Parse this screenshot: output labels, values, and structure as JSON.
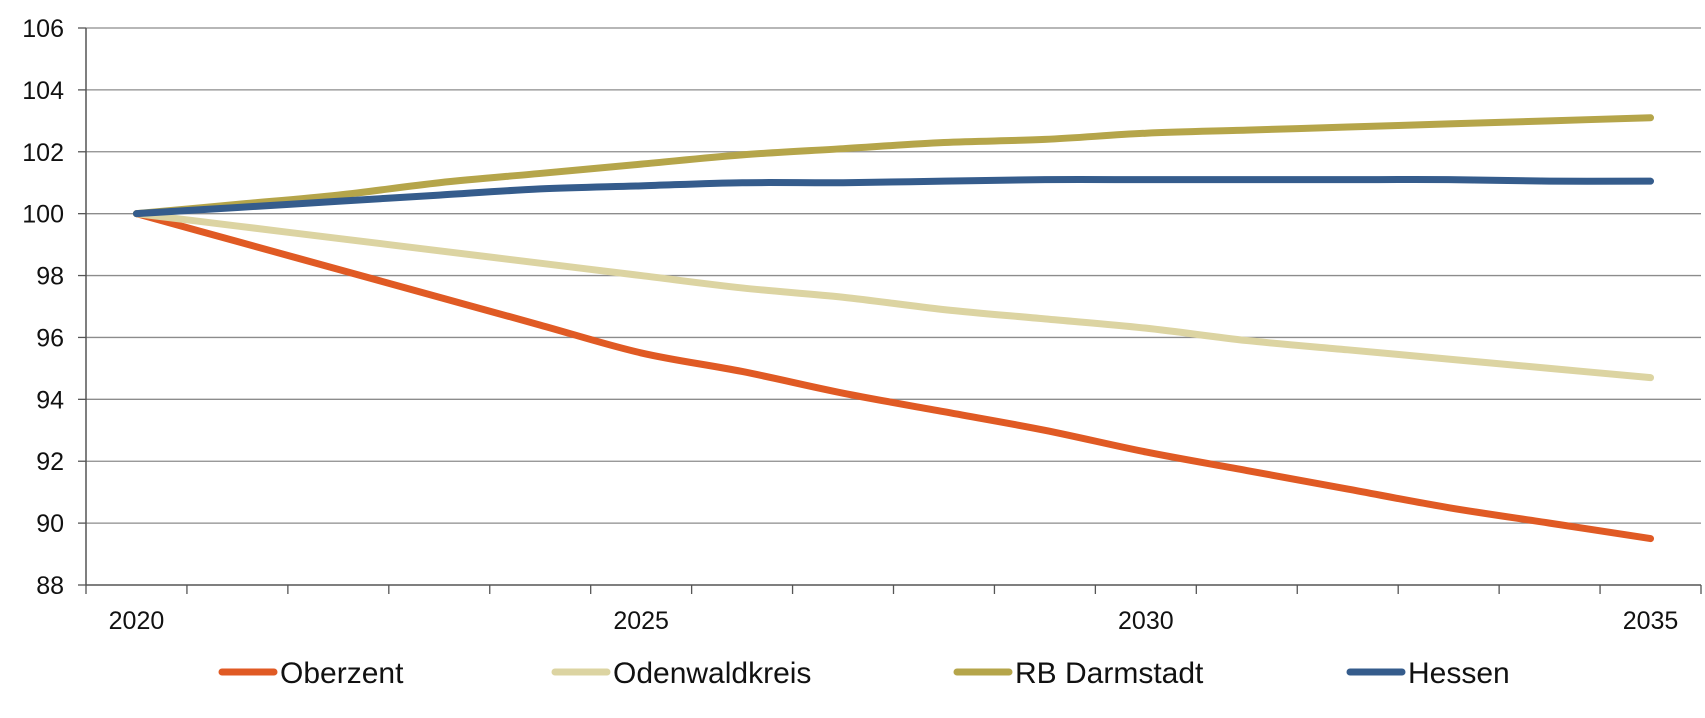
{
  "chart_data": {
    "type": "line",
    "title": "",
    "xlabel": "",
    "ylabel": "",
    "x": [
      2020,
      2021,
      2022,
      2023,
      2024,
      2025,
      2026,
      2027,
      2028,
      2029,
      2030,
      2031,
      2032,
      2033,
      2034,
      2035
    ],
    "xlim": [
      2019.5,
      2035.5
    ],
    "x_tick_labels": [
      "2020",
      "2025",
      "2030",
      "2035"
    ],
    "x_tick_label_values": [
      2020,
      2025,
      2030,
      2035
    ],
    "ylim": [
      88,
      106
    ],
    "y_ticks": [
      88,
      90,
      92,
      94,
      96,
      98,
      100,
      102,
      104,
      106
    ],
    "grid": "horizontal",
    "legend_position": "bottom",
    "series": [
      {
        "name": "Oberzent",
        "color": "#E05A24",
        "values": [
          100,
          99.1,
          98.2,
          97.3,
          96.4,
          95.5,
          94.9,
          94.2,
          93.6,
          93.0,
          92.3,
          91.7,
          91.1,
          90.5,
          90.0,
          89.5
        ]
      },
      {
        "name": "Odenwaldkreis",
        "color": "#DCD4A2",
        "values": [
          100,
          99.6,
          99.2,
          98.8,
          98.4,
          98.0,
          97.6,
          97.3,
          96.9,
          96.6,
          96.3,
          95.9,
          95.6,
          95.3,
          95.0,
          94.7
        ]
      },
      {
        "name": "RB Darmstadt",
        "color": "#B5A54A",
        "values": [
          100,
          100.3,
          100.6,
          101.0,
          101.3,
          101.6,
          101.9,
          102.1,
          102.3,
          102.4,
          102.6,
          102.7,
          102.8,
          102.9,
          103.0,
          103.1
        ]
      },
      {
        "name": "Hessen",
        "color": "#355C8C",
        "values": [
          100,
          100.2,
          100.4,
          100.6,
          100.8,
          100.9,
          101.0,
          101.0,
          101.05,
          101.1,
          101.1,
          101.1,
          101.1,
          101.1,
          101.05,
          101.05
        ]
      }
    ]
  }
}
